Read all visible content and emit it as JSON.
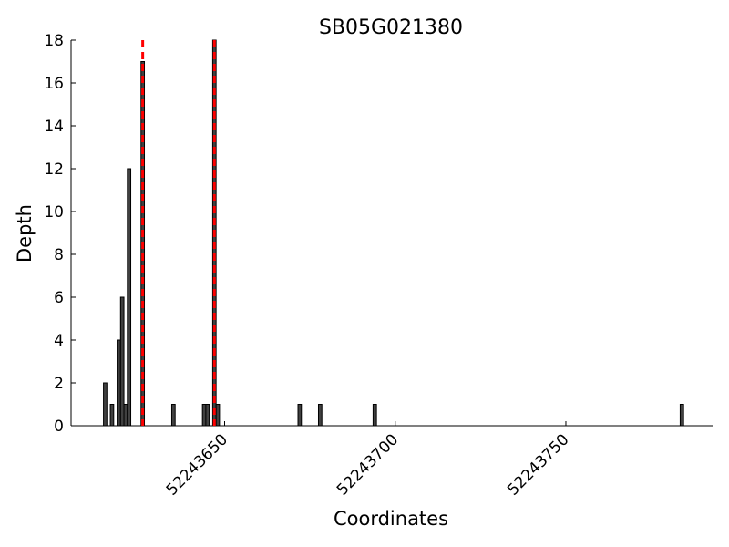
{
  "chart_data": {
    "type": "bar",
    "title": "SB05G021380",
    "x_label": "Coordinates",
    "y_label": "Depth",
    "x": [
      52243615,
      52243617,
      52243619,
      52243620,
      52243621,
      52243622,
      52243626,
      52243635,
      52243644,
      52243645,
      52243647,
      52243648,
      52243672,
      52243678,
      52243694,
      52243784
    ],
    "values": [
      2,
      1,
      4,
      6,
      1,
      12,
      17,
      1,
      1,
      1,
      18,
      1,
      1,
      1,
      1,
      1
    ],
    "color": "#404040",
    "vlines": [
      52243626,
      52243647
    ],
    "vline_color": "#ff0000",
    "xlim": [
      52243605,
      52243793
    ],
    "xticks": [
      52243650,
      52243700,
      52243750
    ],
    "ylim": [
      0,
      18
    ],
    "yticks": [
      0,
      2,
      4,
      6,
      8,
      10,
      12,
      14,
      16,
      18
    ]
  }
}
